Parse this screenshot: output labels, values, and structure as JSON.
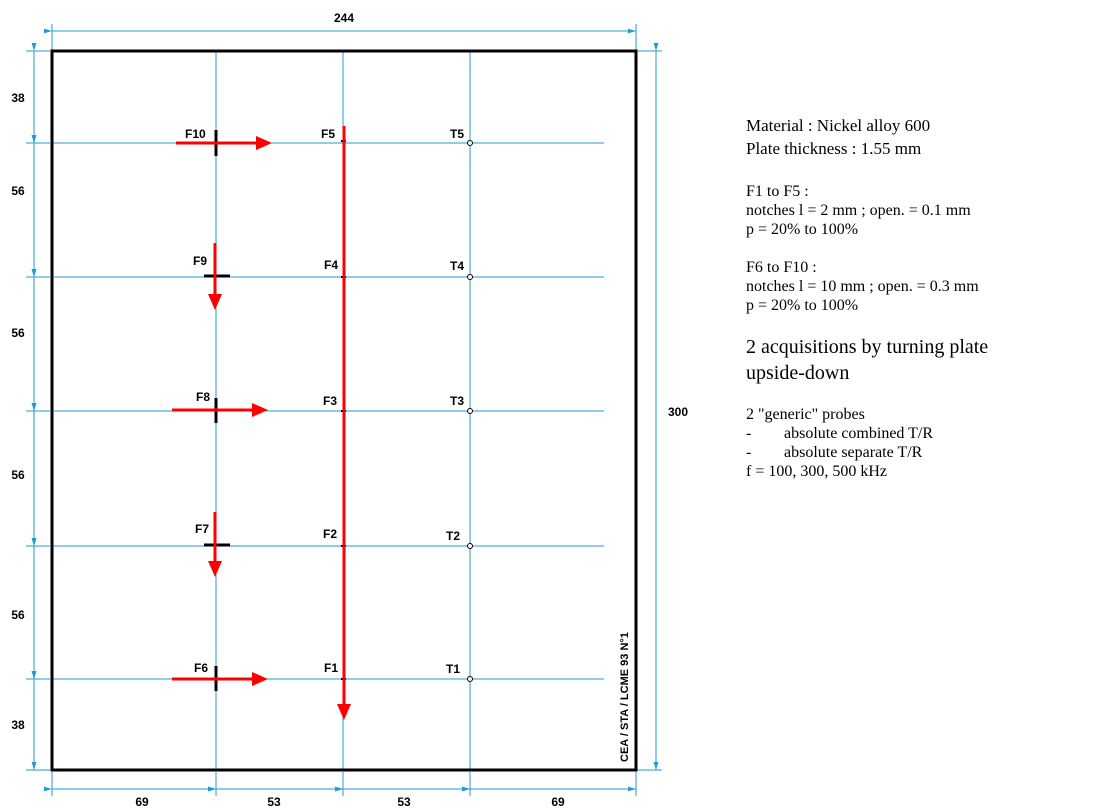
{
  "plate": {
    "width_label": "244",
    "height_label": "300",
    "vertical_segments": [
      "38",
      "56",
      "56",
      "56",
      "56",
      "38"
    ],
    "horizontal_segments": [
      "69",
      "53",
      "53",
      "69"
    ],
    "stamp": "CEA / STA / LCME 93 N°1"
  },
  "markers": {
    "F10": "F10",
    "F9": "F9",
    "F8": "F8",
    "F7": "F7",
    "F6": "F6",
    "F5": "F5",
    "F4": "F4",
    "F3": "F3",
    "F2": "F2",
    "F1": "F1",
    "T5": "T5",
    "T4": "T4",
    "T3": "T3",
    "T2": "T2",
    "T1": "T1"
  },
  "colors": {
    "grid": "#1f9bd6",
    "arrow": "#ff0000",
    "frame": "#000000"
  },
  "notes": {
    "material": "Material : Nickel alloy 600",
    "thickness": "Plate thickness : 1.55 mm",
    "f1f5_title": "F1 to F5 :",
    "f1f5_notches": "notches l = 2 mm ; open. = 0.1 mm",
    "f1f5_p": "p = 20% to 100%",
    "f6f10_title": "F6 to F10 :",
    "f6f10_notches": "notches l = 10 mm ; open. = 0.3 mm",
    "f6f10_p": "p = 20% to 100%",
    "acq_line1": "2 acquisitions by turning plate",
    "acq_line2": "upside-down",
    "probes_title": "2 \"generic\" probes",
    "probe1_dash": "-",
    "probe1": "absolute combined T/R",
    "probe2_dash": "-",
    "probe2": "absolute separate T/R",
    "freq": "f = 100, 300, 500 kHz"
  }
}
